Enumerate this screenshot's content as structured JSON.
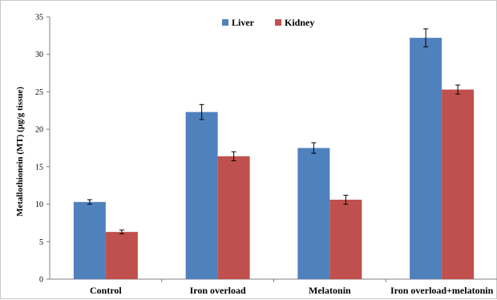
{
  "chart_data": {
    "type": "bar",
    "title": "",
    "xlabel": "",
    "ylabel": "Metallothionein  (MT) (µg/g tissue)",
    "ylim": [
      0,
      35
    ],
    "yticks": [
      0,
      5,
      10,
      15,
      20,
      25,
      30,
      35
    ],
    "grid": false,
    "legend_position": "top-center",
    "categories": [
      "Control",
      "Iron overload",
      "Melatonin",
      "Iron overload+melatonin"
    ],
    "series": [
      {
        "name": "Liver",
        "color": "#4f81bd",
        "values": [
          10.3,
          22.3,
          17.5,
          32.2
        ],
        "errors": [
          0.3,
          1.0,
          0.7,
          1.2
        ]
      },
      {
        "name": "Kidney",
        "color": "#c0504d",
        "values": [
          6.3,
          16.4,
          10.6,
          25.3
        ],
        "errors": [
          0.25,
          0.6,
          0.6,
          0.6
        ]
      }
    ]
  }
}
